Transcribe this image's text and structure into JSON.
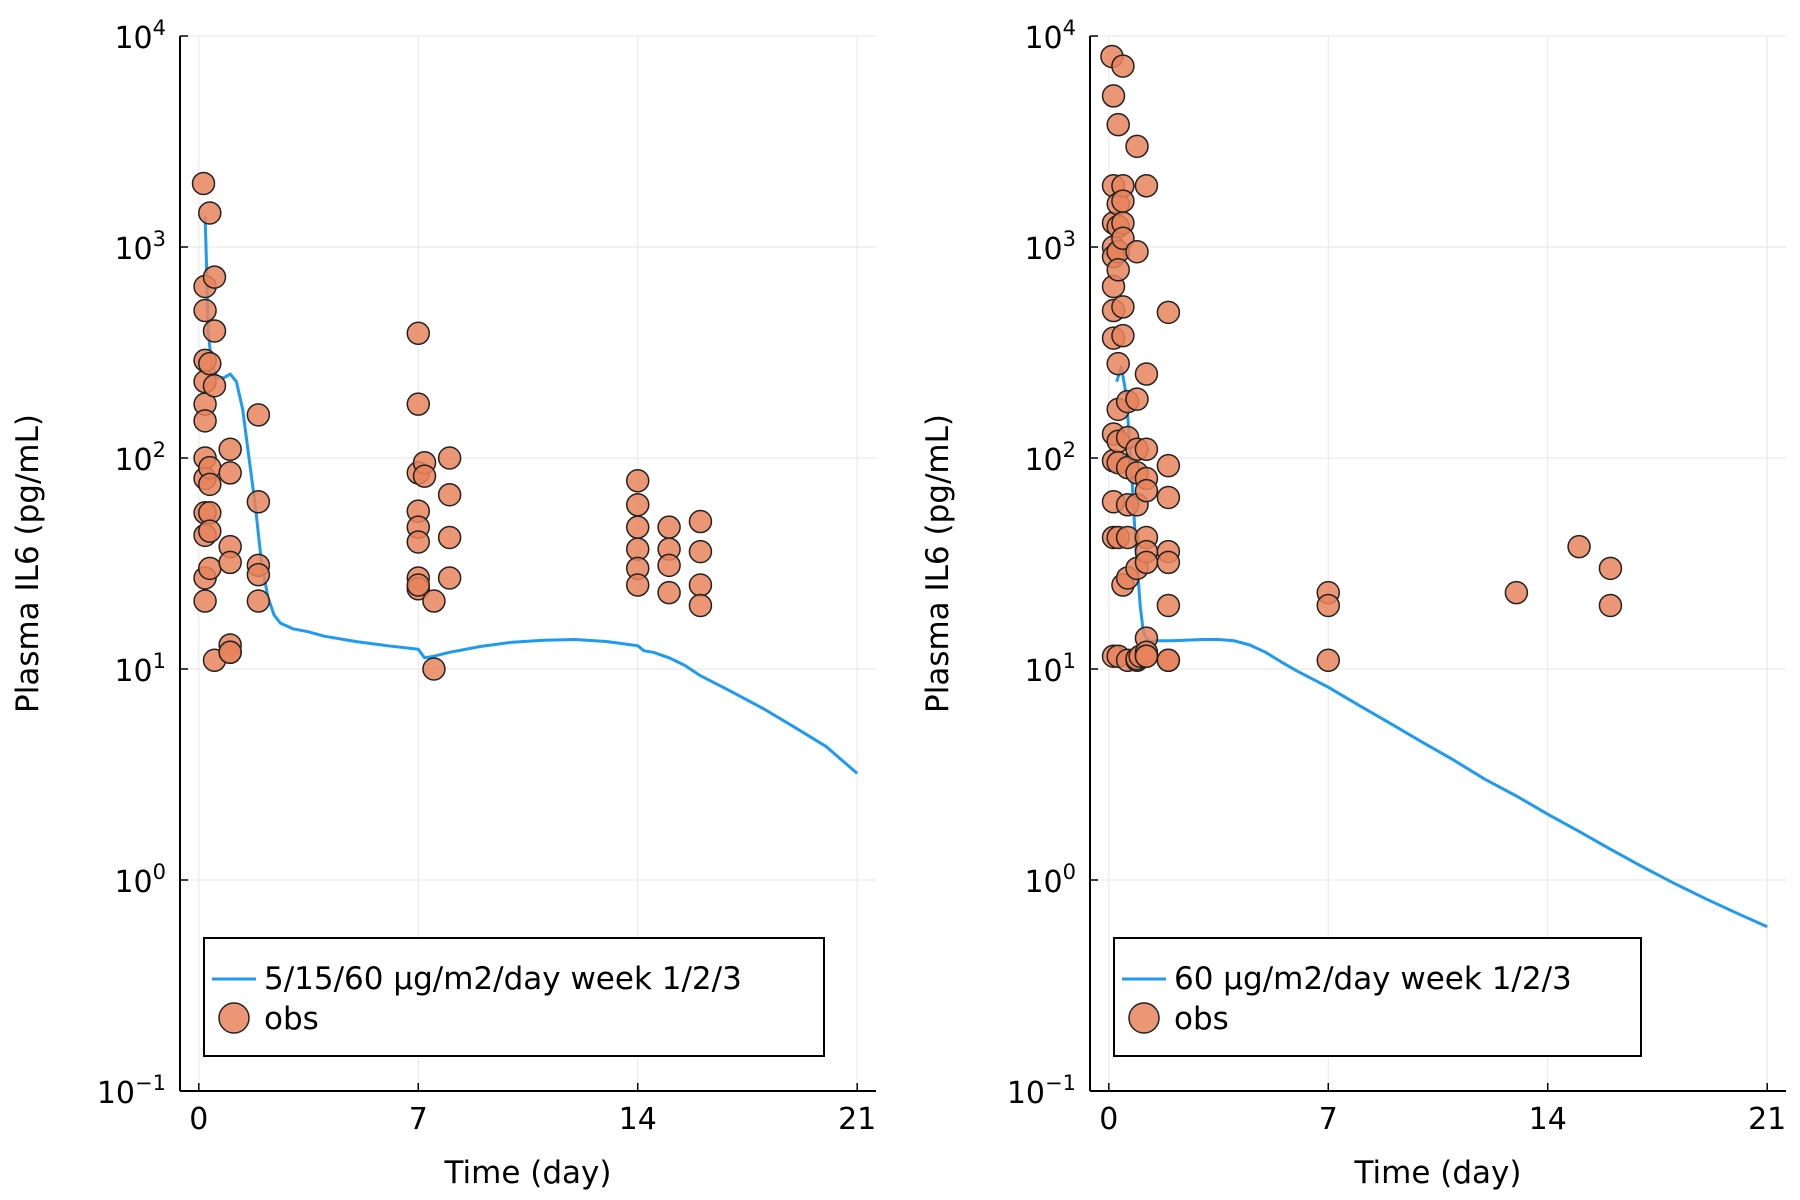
{
  "chart_data": [
    {
      "type": "scatter",
      "title": "",
      "xlabel": "Time (day)",
      "ylabel": "Plasma IL6 (pg/mL)",
      "xlim": [
        -0.6,
        21.6
      ],
      "ylim": [
        0.1,
        10000
      ],
      "y_scale": "log10",
      "x_ticks": [
        0,
        7,
        14,
        21
      ],
      "y_tick_exponents": [
        -1,
        0,
        1,
        2,
        3,
        4
      ],
      "grid": true,
      "legend_position": "bottom",
      "series": [
        {
          "name": "5/15/60 μg/m2/day week 1/2/3",
          "kind": "line",
          "color": "#1e9bf0",
          "x": [
            0.2,
            0.25,
            0.3,
            0.4,
            0.6,
            0.8,
            1.0,
            1.2,
            1.4,
            1.6,
            1.8,
            2.0,
            2.2,
            2.4,
            2.6,
            2.8,
            3.0,
            3.5,
            4.0,
            5.0,
            6.0,
            7.0,
            7.2,
            7.5,
            8.0,
            9.0,
            10.0,
            11.0,
            12.0,
            13.0,
            14.0,
            14.2,
            14.5,
            15.0,
            15.5,
            16.0,
            17.0,
            18.0,
            19.0,
            20.0,
            21.0
          ],
          "y": [
            1400,
            800,
            400,
            280,
            240,
            240,
            250,
            230,
            170,
            100,
            60,
            32,
            22,
            18,
            16.5,
            16,
            15.5,
            15,
            14.3,
            13.5,
            12.9,
            12.4,
            11.3,
            11.5,
            12.0,
            12.8,
            13.4,
            13.7,
            13.8,
            13.5,
            12.9,
            12.2,
            12.0,
            11.3,
            10.4,
            9.3,
            7.8,
            6.5,
            5.3,
            4.3,
            3.2
          ]
        },
        {
          "name": "obs",
          "kind": "scatter",
          "color": "#e8845c",
          "x": [
            0.15,
            0.2,
            0.2,
            0.2,
            0.2,
            0.2,
            0.2,
            0.2,
            0.2,
            0.2,
            0.2,
            0.2,
            0.2,
            0.35,
            0.35,
            0.35,
            0.35,
            0.35,
            0.35,
            0.35,
            0.5,
            0.5,
            0.5,
            0.5,
            1.0,
            1.0,
            1.0,
            1.0,
            1.0,
            1.0,
            1.0,
            1.9,
            1.9,
            1.9,
            1.9,
            1.9,
            7.0,
            7.0,
            7.0,
            7.0,
            7.0,
            7.0,
            7.0,
            7.0,
            7.0,
            7.2,
            7.2,
            7.5,
            7.5,
            8.0,
            8.0,
            8.0,
            8.0,
            14.0,
            14.0,
            14.0,
            14.0,
            14.0,
            14.0,
            15.0,
            15.0,
            15.0,
            15.0,
            16.0,
            16.0,
            16.0,
            16.0
          ],
          "y": [
            2000,
            650,
            500,
            290,
            230,
            180,
            150,
            100,
            80,
            55,
            43,
            27,
            21,
            1450,
            280,
            90,
            75,
            55,
            45,
            30,
            11,
            720,
            400,
            220,
            110,
            85,
            38,
            32,
            13,
            12,
            12,
            160,
            62,
            31,
            28,
            21,
            390,
            180,
            85,
            56,
            47,
            40,
            27,
            24,
            25,
            95,
            82,
            21,
            10,
            100,
            67,
            42,
            27,
            78,
            60,
            47,
            37,
            30,
            25,
            47,
            37,
            31,
            23,
            50,
            36,
            25,
            20
          ]
        }
      ]
    },
    {
      "type": "scatter",
      "title": "",
      "xlabel": "Time (day)",
      "ylabel": "Plasma IL6 (pg/mL)",
      "xlim": [
        -0.6,
        21.6
      ],
      "ylim": [
        0.1,
        10000
      ],
      "y_scale": "log10",
      "x_ticks": [
        0,
        7,
        14,
        21
      ],
      "y_tick_exponents": [
        -1,
        0,
        1,
        2,
        3,
        4
      ],
      "grid": true,
      "legend_position": "bottom",
      "series": [
        {
          "name": "60 μg/m2/day week 1/2/3",
          "kind": "line",
          "color": "#1e9bf0",
          "x": [
            0.25,
            0.4,
            0.55,
            0.7,
            0.85,
            1.0,
            1.1,
            1.2,
            1.3,
            1.5,
            2.0,
            3.0,
            3.5,
            4.0,
            4.5,
            5.0,
            5.5,
            6.0,
            7.0,
            8.0,
            9.0,
            10.0,
            11.0,
            12.0,
            13.0,
            14.0,
            15.0,
            16.0,
            17.0,
            18.0,
            19.0,
            20.0,
            21.0
          ],
          "y": [
            230,
            270,
            200,
            100,
            40,
            20,
            15,
            14,
            13.5,
            13.6,
            13.6,
            13.8,
            13.8,
            13.6,
            13,
            12,
            10.8,
            9.8,
            8.2,
            6.7,
            5.5,
            4.5,
            3.7,
            3.0,
            2.5,
            2.05,
            1.7,
            1.4,
            1.16,
            0.97,
            0.82,
            0.7,
            0.6
          ]
        },
        {
          "name": "obs",
          "kind": "scatter",
          "color": "#e8845c",
          "x": [
            0.1,
            0.15,
            0.15,
            0.15,
            0.15,
            0.15,
            0.15,
            0.15,
            0.15,
            0.15,
            0.15,
            0.15,
            0.15,
            0.15,
            0.3,
            0.3,
            0.3,
            0.3,
            0.3,
            0.3,
            0.3,
            0.3,
            0.3,
            0.3,
            0.3,
            0.45,
            0.45,
            0.45,
            0.45,
            0.45,
            0.45,
            0.45,
            0.45,
            0.6,
            0.6,
            0.6,
            0.6,
            0.6,
            0.6,
            0.6,
            0.9,
            0.9,
            0.9,
            0.9,
            0.9,
            0.9,
            0.9,
            0.9,
            0.9,
            1.0,
            1.2,
            1.2,
            1.2,
            1.2,
            1.2,
            1.2,
            1.2,
            1.2,
            1.2,
            1.2,
            1.2,
            1.2,
            1.9,
            1.9,
            1.9,
            1.9,
            1.9,
            1.9,
            1.9,
            1.9,
            7.0,
            7.0,
            7.0,
            13.0,
            15.0,
            16.0,
            16.0
          ],
          "y": [
            8000,
            5200,
            1950,
            1300,
            1000,
            650,
            500,
            370,
            130,
            97,
            62,
            42,
            11.5,
            900,
            3800,
            1600,
            1250,
            950,
            780,
            280,
            170,
            120,
            95,
            42,
            11.5,
            7200,
            1950,
            1650,
            1300,
            1100,
            520,
            380,
            25,
            185,
            125,
            90,
            60,
            42,
            27,
            11,
            3000,
            950,
            190,
            110,
            85,
            60,
            30,
            11,
            11.2,
            11.5,
            1950,
            250,
            110,
            80,
            70,
            42,
            36,
            32,
            14,
            12,
            11.5,
            11.5,
            490,
            92,
            65,
            36,
            32,
            20,
            11,
            11,
            23,
            20,
            11,
            23,
            38,
            30,
            20
          ]
        }
      ]
    }
  ]
}
